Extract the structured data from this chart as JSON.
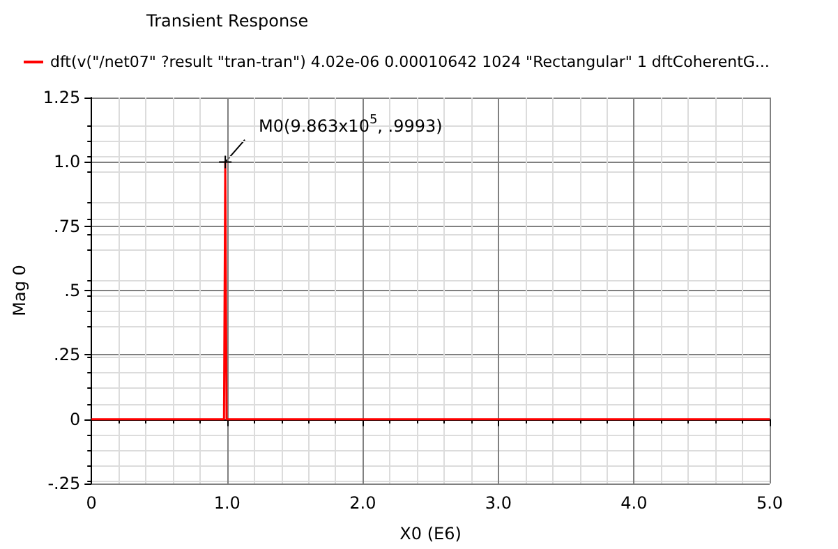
{
  "chart_data": {
    "type": "line",
    "title": "Transient Response",
    "xlabel": "X0 (E6)",
    "ylabel": "Mag 0",
    "x": [
      0,
      0.977,
      0.9863,
      0.996,
      5.0
    ],
    "series": [
      {
        "name": "dft(v(\"/net07\" ?result \"tran-tran\") 4.02e-06 0.00010642 1024 \"Rectangular\" 1 dftCoherentG...",
        "color": "#ff0000",
        "values": [
          0,
          0,
          0.9993,
          0,
          0
        ]
      }
    ],
    "xlim": [
      0,
      5.0
    ],
    "xticks": [
      0,
      {
        "value": 1,
        "label": "1.0"
      },
      {
        "value": 2,
        "label": "2.0"
      },
      {
        "value": 3,
        "label": "3.0"
      },
      {
        "value": 4,
        "label": "4.0"
      },
      {
        "value": 5,
        "label": "5.0"
      }
    ],
    "ylim": [
      -0.25,
      1.25
    ],
    "yticks": [
      {
        "value": -0.25,
        "label": "-.25"
      },
      0,
      {
        "value": 0.25,
        "label": ".25"
      },
      {
        "value": 0.5,
        "label": ".5"
      },
      {
        "value": 0.75,
        "label": ".75"
      },
      {
        "value": 1,
        "label": "1.0"
      },
      {
        "value": 1.25,
        "label": "1.25"
      }
    ],
    "annotations": [
      {
        "text": "M0(9.863x10$^{5}$, .9993)",
        "x": 0.9863,
        "y": 0.9993
      }
    ],
    "grid": true,
    "legend": "top left",
    "marker": "none",
    "line_style": "solid"
  }
}
